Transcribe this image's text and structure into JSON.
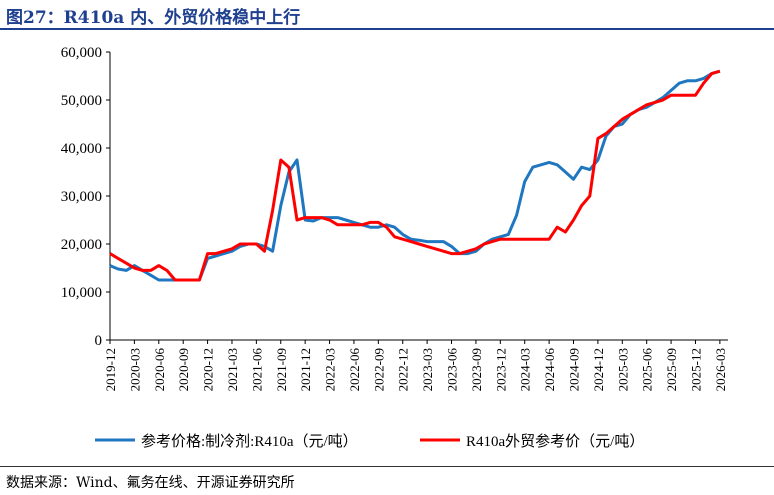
{
  "header": {
    "title": "图27：R410a 内、外贸价格稳中上行"
  },
  "footer": {
    "source": "数据来源：Wind、氟务在线、开源证券研究所"
  },
  "colors": {
    "title": "#1f3f8f",
    "series_1": "#1f77c0",
    "series_2": "#ff0000"
  },
  "chart_data": {
    "type": "line",
    "title": "",
    "xlabel": "",
    "ylabel": "",
    "ylim": [
      0,
      60000
    ],
    "yticks": [
      0,
      10000,
      20000,
      30000,
      40000,
      50000,
      60000
    ],
    "ytick_labels": [
      "0",
      "10,000",
      "20,000",
      "30,000",
      "40,000",
      "50,000",
      "60,000"
    ],
    "xlim": [
      "2019-12",
      "2026-04"
    ],
    "xtick_labels": [
      "2019-12",
      "2020-03",
      "2020-06",
      "2020-09",
      "2020-12",
      "2021-03",
      "2021-06",
      "2021-09",
      "2021-12",
      "2022-03",
      "2022-06",
      "2022-09",
      "2022-12",
      "2023-03",
      "2023-06",
      "2023-09",
      "2023-12",
      "2024-03",
      "2024-06",
      "2024-09",
      "2024-12",
      "2025-03",
      "2025-06",
      "2025-09",
      "2025-12",
      "2026-03"
    ],
    "grid": false,
    "legend_position": "bottom",
    "series": [
      {
        "name": "参考价格:制冷剂:R410a（元/吨）",
        "color": "#1f77c0",
        "x": [
          "2019-12",
          "2020-01",
          "2020-02",
          "2020-03",
          "2020-04",
          "2020-05",
          "2020-06",
          "2020-07",
          "2020-08",
          "2020-09",
          "2020-10",
          "2020-11",
          "2020-12",
          "2021-01",
          "2021-02",
          "2021-03",
          "2021-04",
          "2021-05",
          "2021-06",
          "2021-07",
          "2021-08",
          "2021-09",
          "2021-10",
          "2021-11",
          "2021-12",
          "2022-01",
          "2022-02",
          "2022-03",
          "2022-04",
          "2022-05",
          "2022-06",
          "2022-07",
          "2022-08",
          "2022-09",
          "2022-10",
          "2022-11",
          "2022-12",
          "2023-01",
          "2023-02",
          "2023-03",
          "2023-04",
          "2023-05",
          "2023-06",
          "2023-07",
          "2023-08",
          "2023-09",
          "2023-10",
          "2023-11",
          "2023-12",
          "2024-01",
          "2024-02",
          "2024-03",
          "2024-04",
          "2024-05",
          "2024-06",
          "2024-07",
          "2024-08",
          "2024-09",
          "2024-10",
          "2024-11",
          "2024-12",
          "2025-01",
          "2025-02",
          "2025-03",
          "2025-04",
          "2025-05",
          "2025-06",
          "2025-07",
          "2025-08",
          "2025-09",
          "2025-10",
          "2025-11",
          "2025-12",
          "2026-01",
          "2026-02",
          "2026-03"
        ],
        "values": [
          15500,
          14800,
          14500,
          15500,
          14500,
          13500,
          12500,
          12500,
          12500,
          12500,
          12500,
          12500,
          17000,
          17500,
          18000,
          18500,
          19500,
          20000,
          20000,
          19500,
          18500,
          28000,
          35000,
          37500,
          25000,
          24800,
          25500,
          25500,
          25500,
          25000,
          24500,
          24000,
          23500,
          23500,
          24000,
          23500,
          22000,
          21000,
          20800,
          20500,
          20500,
          20500,
          19500,
          18000,
          18000,
          18500,
          20000,
          21000,
          21500,
          22000,
          26000,
          33000,
          36000,
          36500,
          37000,
          36500,
          35000,
          33500,
          36000,
          35500,
          37500,
          42500,
          44500,
          45000,
          47000,
          48000,
          48500,
          49500,
          50500,
          52000,
          53500,
          54000,
          54000,
          54500,
          55500,
          56000
        ]
      },
      {
        "name": "R410a外贸参考价（元/吨）",
        "color": "#ff0000",
        "x": [
          "2019-12",
          "2020-01",
          "2020-02",
          "2020-03",
          "2020-04",
          "2020-05",
          "2020-06",
          "2020-07",
          "2020-08",
          "2020-09",
          "2020-10",
          "2020-11",
          "2020-12",
          "2021-01",
          "2021-02",
          "2021-03",
          "2021-04",
          "2021-05",
          "2021-06",
          "2021-07",
          "2021-08",
          "2021-09",
          "2021-10",
          "2021-11",
          "2021-12",
          "2022-01",
          "2022-02",
          "2022-03",
          "2022-04",
          "2022-05",
          "2022-06",
          "2022-07",
          "2022-08",
          "2022-09",
          "2022-10",
          "2022-11",
          "2022-12",
          "2023-01",
          "2023-02",
          "2023-03",
          "2023-04",
          "2023-05",
          "2023-06",
          "2023-07",
          "2023-08",
          "2023-09",
          "2023-10",
          "2023-11",
          "2023-12",
          "2024-01",
          "2024-02",
          "2024-03",
          "2024-04",
          "2024-05",
          "2024-06",
          "2024-07",
          "2024-08",
          "2024-09",
          "2024-10",
          "2024-11",
          "2024-12",
          "2025-01",
          "2025-02",
          "2025-03",
          "2025-04",
          "2025-05",
          "2025-06",
          "2025-07",
          "2025-08",
          "2025-09",
          "2025-10",
          "2025-11",
          "2025-12",
          "2026-01",
          "2026-02",
          "2026-03"
        ],
        "values": [
          18000,
          17000,
          16000,
          15000,
          14500,
          14500,
          15500,
          14500,
          12500,
          12500,
          12500,
          12500,
          18000,
          18000,
          18500,
          19000,
          20000,
          20000,
          20000,
          18500,
          27000,
          37500,
          36000,
          25000,
          25500,
          25500,
          25500,
          25000,
          24000,
          24000,
          24000,
          24000,
          24500,
          24500,
          23500,
          21500,
          21000,
          20500,
          20000,
          19500,
          19000,
          18500,
          18000,
          18000,
          18500,
          19000,
          20000,
          20500,
          21000,
          21000,
          21000,
          21000,
          21000,
          21000,
          21000,
          23500,
          22500,
          25000,
          28000,
          30000,
          42000,
          43000,
          44500,
          46000,
          47000,
          48000,
          49000,
          49500,
          50000,
          51000,
          51000,
          51000,
          51000,
          53500,
          55500,
          56000
        ]
      }
    ]
  }
}
